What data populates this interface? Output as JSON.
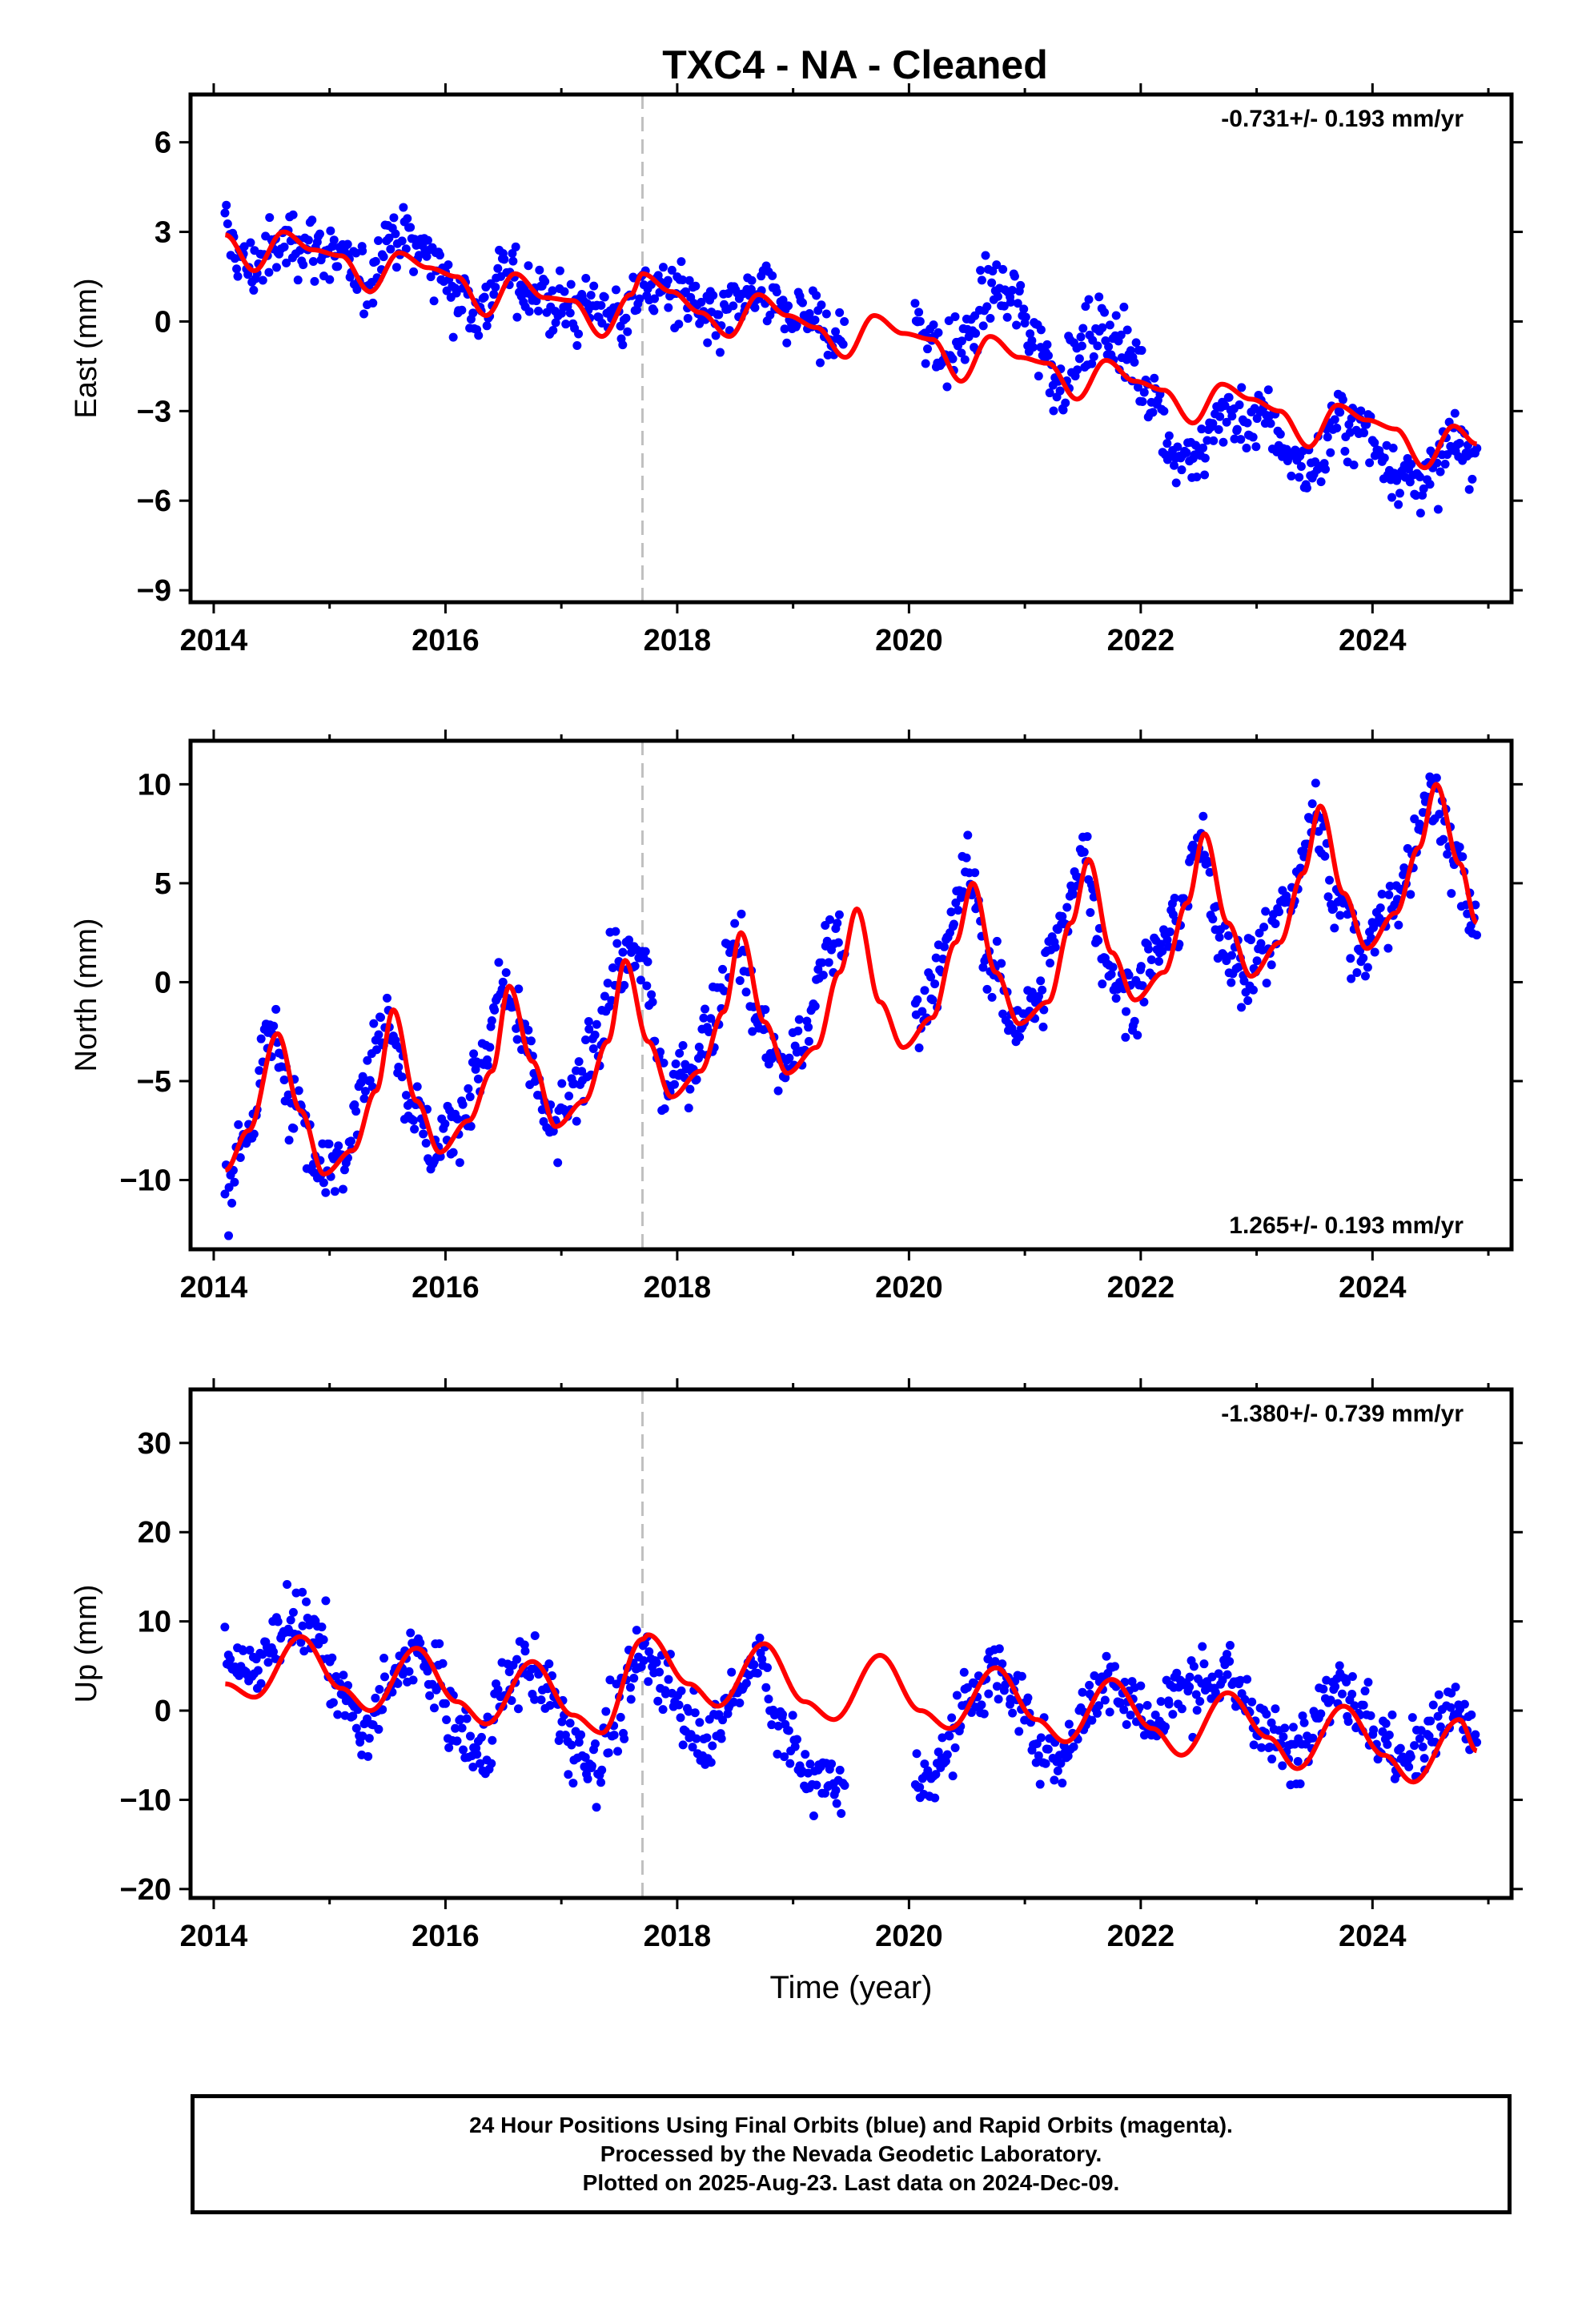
{
  "title": "TXC4  - NA - Cleaned",
  "colors": {
    "points": "#0000ff",
    "model": "#ff0000",
    "event_line": "#c0c0c0",
    "frame": "#000000"
  },
  "footer": {
    "line1": "24 Hour Positions Using Final Orbits (blue) and Rapid Orbits (magenta).",
    "line2": "Processed by the Nevada Geodetic Laboratory.",
    "line3": "Plotted on 2025-Aug-23. Last data on 2024-Dec-09."
  },
  "chart_data": [
    {
      "type": "scatter",
      "ylabel": "East (mm)",
      "xlabel": "",
      "xlim": [
        2013.8,
        2025.2
      ],
      "ylim": [
        -9.4,
        7.6
      ],
      "xticks": [
        2014,
        2016,
        2018,
        2020,
        2022,
        2024
      ],
      "yticks": [
        6,
        3,
        0,
        -3,
        -6,
        -9
      ],
      "rate_label": "-0.731+/- 0.193 mm/yr",
      "rate_position": "top-right",
      "event_line_x": 2017.7,
      "data_gap": [
        2019.45,
        2020.05
      ],
      "series": [
        {
          "kind": "points",
          "x": [
            2014.1,
            2014.3,
            2014.5,
            2014.7,
            2014.9,
            2015.1,
            2015.3,
            2015.5,
            2015.7,
            2015.9,
            2016.1,
            2016.3,
            2016.5,
            2016.7,
            2016.9,
            2017.1,
            2017.3,
            2017.5,
            2017.7,
            2017.9,
            2018.1,
            2018.3,
            2018.5,
            2018.7,
            2018.9,
            2019.1,
            2019.3,
            2020.1,
            2020.3,
            2020.5,
            2020.7,
            2020.9,
            2021.1,
            2021.3,
            2021.5,
            2021.7,
            2021.9,
            2022.1,
            2022.3,
            2022.5,
            2022.7,
            2022.9,
            2023.1,
            2023.3,
            2023.5,
            2023.7,
            2023.9,
            2024.1,
            2024.3,
            2024.5,
            2024.7,
            2024.9
          ],
          "y": [
            2.9,
            1.8,
            2.3,
            2.8,
            2.5,
            2.0,
            1.2,
            2.9,
            2.7,
            2.1,
            1.0,
            0.4,
            1.6,
            1.2,
            0.6,
            0.4,
            0.6,
            0.2,
            1.0,
            1.1,
            0.7,
            -0.2,
            0.4,
            0.8,
            0.3,
            0.3,
            -0.5,
            -0.1,
            -1.2,
            -0.6,
            1.0,
            0.7,
            -0.6,
            -2.0,
            -0.9,
            -0.1,
            -1.2,
            -2.3,
            -4.5,
            -4.6,
            -3.0,
            -3.4,
            -3.3,
            -4.6,
            -5.0,
            -3.4,
            -3.6,
            -4.5,
            -5.3,
            -5.2,
            -4.1,
            -4.8
          ]
        },
        {
          "kind": "model",
          "x": [
            2014.1,
            2014.35,
            2014.6,
            2014.85,
            2015.1,
            2015.35,
            2015.6,
            2015.85,
            2016.1,
            2016.35,
            2016.6,
            2016.85,
            2017.1,
            2017.35,
            2017.6,
            2017.7,
            2017.95,
            2018.2,
            2018.45,
            2018.7,
            2018.95,
            2019.2,
            2019.45,
            2019.7,
            2019.95,
            2020.2,
            2020.45,
            2020.7,
            2020.95,
            2021.2,
            2021.45,
            2021.7,
            2021.95,
            2022.2,
            2022.45,
            2022.7,
            2022.95,
            2023.2,
            2023.45,
            2023.7,
            2023.95,
            2024.2,
            2024.45,
            2024.7,
            2024.9
          ],
          "y": [
            2.9,
            1.7,
            3.0,
            2.4,
            2.2,
            1.0,
            2.3,
            1.8,
            1.5,
            0.2,
            1.6,
            0.8,
            0.7,
            -0.5,
            0.9,
            1.6,
            1.0,
            0.3,
            -0.5,
            0.9,
            0.2,
            -0.2,
            -1.2,
            0.2,
            -0.4,
            -0.6,
            -2.0,
            -0.5,
            -1.2,
            -1.4,
            -2.6,
            -1.3,
            -2.0,
            -2.3,
            -3.4,
            -2.1,
            -2.6,
            -3.0,
            -4.2,
            -2.8,
            -3.3,
            -3.6,
            -4.9,
            -3.5,
            -4.1
          ]
        }
      ]
    },
    {
      "type": "scatter",
      "ylabel": "North (mm)",
      "xlabel": "",
      "xlim": [
        2013.8,
        2025.2
      ],
      "ylim": [
        -13.5,
        12.2
      ],
      "xticks": [
        2014,
        2016,
        2018,
        2020,
        2022,
        2024
      ],
      "yticks": [
        10,
        5,
        0,
        -5,
        -10
      ],
      "rate_label": "1.265+/- 0.193 mm/yr",
      "rate_position": "bottom-right",
      "event_line_x": 2017.7,
      "data_gap": [
        2019.45,
        2020.05
      ],
      "series": [
        {
          "kind": "points",
          "x": [
            2014.1,
            2014.3,
            2014.5,
            2014.7,
            2014.9,
            2015.1,
            2015.3,
            2015.5,
            2015.7,
            2015.9,
            2016.1,
            2016.3,
            2016.5,
            2016.7,
            2016.9,
            2017.1,
            2017.3,
            2017.5,
            2017.7,
            2017.9,
            2018.1,
            2018.3,
            2018.5,
            2018.7,
            2018.9,
            2019.1,
            2019.3,
            2020.1,
            2020.3,
            2020.5,
            2020.7,
            2020.9,
            2021.1,
            2021.3,
            2021.5,
            2021.7,
            2021.9,
            2022.1,
            2022.3,
            2022.5,
            2022.7,
            2022.9,
            2023.1,
            2023.3,
            2023.5,
            2023.7,
            2023.9,
            2024.1,
            2024.3,
            2024.5,
            2024.7,
            2024.9
          ],
          "y": [
            -10.5,
            -7.5,
            -2.5,
            -6.0,
            -9.8,
            -8.5,
            -5.0,
            -1.5,
            -6.0,
            -8.5,
            -7.0,
            -4.5,
            -0.5,
            -3.5,
            -7.5,
            -6.0,
            -2.5,
            1.0,
            1.0,
            -5.5,
            -4.5,
            -2.0,
            2.5,
            -2.0,
            -4.5,
            -3.0,
            2.0,
            -1.5,
            1.5,
            5.5,
            1.0,
            -2.0,
            -1.0,
            2.5,
            6.5,
            1.0,
            -1.0,
            1.0,
            3.0,
            7.0,
            2.5,
            0.0,
            2.0,
            4.5,
            8.5,
            4.0,
            1.5,
            3.0,
            5.5,
            10.0,
            6.0,
            3.5
          ]
        },
        {
          "kind": "model",
          "x": [
            2014.1,
            2014.3,
            2014.55,
            2014.75,
            2014.95,
            2015.2,
            2015.4,
            2015.55,
            2015.75,
            2015.95,
            2016.2,
            2016.4,
            2016.55,
            2016.75,
            2016.95,
            2017.2,
            2017.4,
            2017.55,
            2017.75,
            2017.95,
            2018.2,
            2018.4,
            2018.55,
            2018.75,
            2018.95,
            2019.2,
            2019.4,
            2019.55,
            2019.75,
            2019.95,
            2020.2,
            2020.4,
            2020.55,
            2020.75,
            2020.95,
            2021.2,
            2021.4,
            2021.55,
            2021.75,
            2021.95,
            2022.2,
            2022.4,
            2022.55,
            2022.75,
            2022.95,
            2023.2,
            2023.4,
            2023.55,
            2023.75,
            2023.95,
            2024.2,
            2024.4,
            2024.55,
            2024.75,
            2024.9
          ],
          "y": [
            -9.5,
            -7.5,
            -2.6,
            -6.5,
            -9.7,
            -8.5,
            -5.5,
            -1.4,
            -6.0,
            -8.6,
            -7.0,
            -4.5,
            -0.2,
            -4.0,
            -7.3,
            -6.0,
            -3.0,
            1.1,
            -3.0,
            -5.8,
            -4.5,
            -1.5,
            2.5,
            -2.0,
            -4.6,
            -3.3,
            0.5,
            3.7,
            -1.0,
            -3.3,
            -1.8,
            2.0,
            5.0,
            0.5,
            -2.1,
            -1.0,
            3.0,
            6.2,
            1.5,
            -0.9,
            0.5,
            4.0,
            7.5,
            3.0,
            0.3,
            2.0,
            5.5,
            8.9,
            4.5,
            1.7,
            3.5,
            6.8,
            10.0,
            6.0,
            3.0
          ]
        }
      ]
    },
    {
      "type": "scatter",
      "ylabel": "Up (mm)",
      "xlabel": "Time (year)",
      "xlim": [
        2013.8,
        2025.2
      ],
      "ylim": [
        -21,
        36
      ],
      "xticks": [
        2014,
        2016,
        2018,
        2020,
        2022,
        2024
      ],
      "yticks": [
        30,
        20,
        10,
        0,
        -10,
        -20
      ],
      "rate_label": "-1.380+/- 0.739 mm/yr",
      "rate_position": "top-right",
      "event_line_x": 2017.7,
      "data_gap": [
        2019.45,
        2020.05
      ],
      "series": [
        {
          "kind": "points",
          "x": [
            2014.1,
            2014.3,
            2014.5,
            2014.7,
            2014.9,
            2015.1,
            2015.3,
            2015.5,
            2015.7,
            2015.9,
            2016.1,
            2016.3,
            2016.5,
            2016.7,
            2016.9,
            2017.1,
            2017.3,
            2017.5,
            2017.7,
            2017.9,
            2018.1,
            2018.3,
            2018.5,
            2018.7,
            2018.9,
            2019.1,
            2019.3,
            2020.1,
            2020.3,
            2020.5,
            2020.7,
            2020.9,
            2021.1,
            2021.3,
            2021.5,
            2021.7,
            2021.9,
            2022.1,
            2022.3,
            2022.5,
            2022.7,
            2022.9,
            2023.1,
            2023.3,
            2023.5,
            2023.7,
            2023.9,
            2024.1,
            2024.3,
            2024.5,
            2024.7,
            2024.9
          ],
          "y": [
            6.0,
            4.0,
            8.0,
            10.0,
            9.0,
            2.0,
            -3.0,
            2.0,
            7.0,
            4.0,
            -2.0,
            -5.0,
            2.0,
            5.0,
            2.0,
            -4.0,
            -6.0,
            0.0,
            6.0,
            4.0,
            -1.0,
            -3.0,
            2.0,
            6.0,
            -2.0,
            -7.0,
            -8.0,
            -8.0,
            -5.0,
            1.0,
            4.0,
            2.0,
            -3.0,
            -6.0,
            0.0,
            3.0,
            2.0,
            -2.0,
            2.0,
            3.0,
            4.0,
            1.0,
            -3.0,
            -5.0,
            0.0,
            3.0,
            1.0,
            -4.0,
            -6.0,
            -2.0,
            0.0,
            -3.0
          ]
        },
        {
          "kind": "model",
          "x": [
            2014.1,
            2014.35,
            2014.75,
            2015.1,
            2015.35,
            2015.75,
            2016.1,
            2016.35,
            2016.75,
            2017.1,
            2017.35,
            2017.7,
            2017.75,
            2018.1,
            2018.35,
            2018.75,
            2019.1,
            2019.35,
            2019.75,
            2020.1,
            2020.35,
            2020.75,
            2021.1,
            2021.35,
            2021.75,
            2022.1,
            2022.35,
            2022.75,
            2023.1,
            2023.35,
            2023.75,
            2024.1,
            2024.35,
            2024.75,
            2024.9
          ],
          "y": [
            3.0,
            1.5,
            8.3,
            2.5,
            0.0,
            7.0,
            1.0,
            -1.5,
            5.5,
            -0.5,
            -2.5,
            8.0,
            8.5,
            3.0,
            0.5,
            7.5,
            1.0,
            -1.0,
            6.2,
            0.0,
            -2.0,
            4.8,
            -1.0,
            -3.5,
            3.5,
            -2.0,
            -5.0,
            2.0,
            -3.0,
            -6.5,
            0.5,
            -5.0,
            -8.0,
            -1.0,
            -4.5
          ]
        }
      ]
    }
  ]
}
